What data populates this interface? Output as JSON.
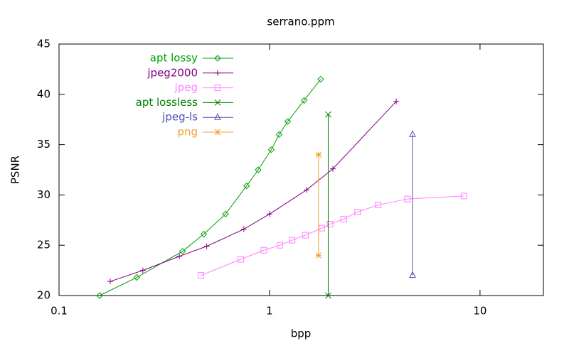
{
  "chart_data": {
    "type": "line",
    "title": "serrano.ppm",
    "x_label": "bpp",
    "y_label": "PSNR",
    "xscale": "log",
    "xlim": [
      0.1,
      20
    ],
    "xticks": [
      0.1,
      1,
      10
    ],
    "ylim": [
      20,
      45
    ],
    "yticks": [
      20,
      25,
      30,
      35,
      40,
      45
    ],
    "legend": "top-left",
    "series": [
      {
        "name": "apt lossy",
        "color": "#00a000",
        "marker": "diamond",
        "x": [
          0.156,
          0.234,
          0.386,
          0.487,
          0.618,
          0.778,
          0.883,
          1.02,
          1.11,
          1.22,
          1.46,
          1.75
        ],
        "values": [
          20.0,
          21.8,
          24.4,
          26.1,
          28.1,
          30.9,
          32.5,
          34.5,
          36.0,
          37.3,
          39.4,
          41.5
        ]
      },
      {
        "name": "jpeg2000",
        "color": "#800080",
        "marker": "plus",
        "x": [
          0.175,
          0.25,
          0.373,
          0.503,
          0.755,
          1.0,
          1.5,
          2.0,
          4.0
        ],
        "values": [
          21.4,
          22.5,
          23.9,
          24.9,
          26.6,
          28.1,
          30.5,
          32.6,
          39.3
        ]
      },
      {
        "name": "jpeg",
        "color": "#ff80ff",
        "marker": "square",
        "x": [
          0.472,
          0.73,
          0.94,
          1.12,
          1.28,
          1.48,
          1.77,
          1.94,
          2.25,
          2.62,
          3.28,
          4.52,
          8.39
        ],
        "values": [
          22.0,
          23.6,
          24.5,
          25.0,
          25.5,
          26.0,
          26.7,
          27.1,
          27.6,
          28.3,
          29.0,
          29.6,
          29.9
        ]
      },
      {
        "name": "apt lossless",
        "color": "#008000",
        "marker": "cross",
        "x": [
          1.9,
          1.9
        ],
        "values": [
          20.0,
          38.0
        ]
      },
      {
        "name": "jpeg-ls",
        "color": "#5050b0",
        "marker": "triangle",
        "x": [
          4.78,
          4.78
        ],
        "values": [
          22.0,
          36.0
        ]
      },
      {
        "name": "png",
        "color": "#f0a030",
        "marker": "star",
        "x": [
          1.71,
          1.71
        ],
        "values": [
          24.0,
          34.0
        ]
      }
    ]
  }
}
